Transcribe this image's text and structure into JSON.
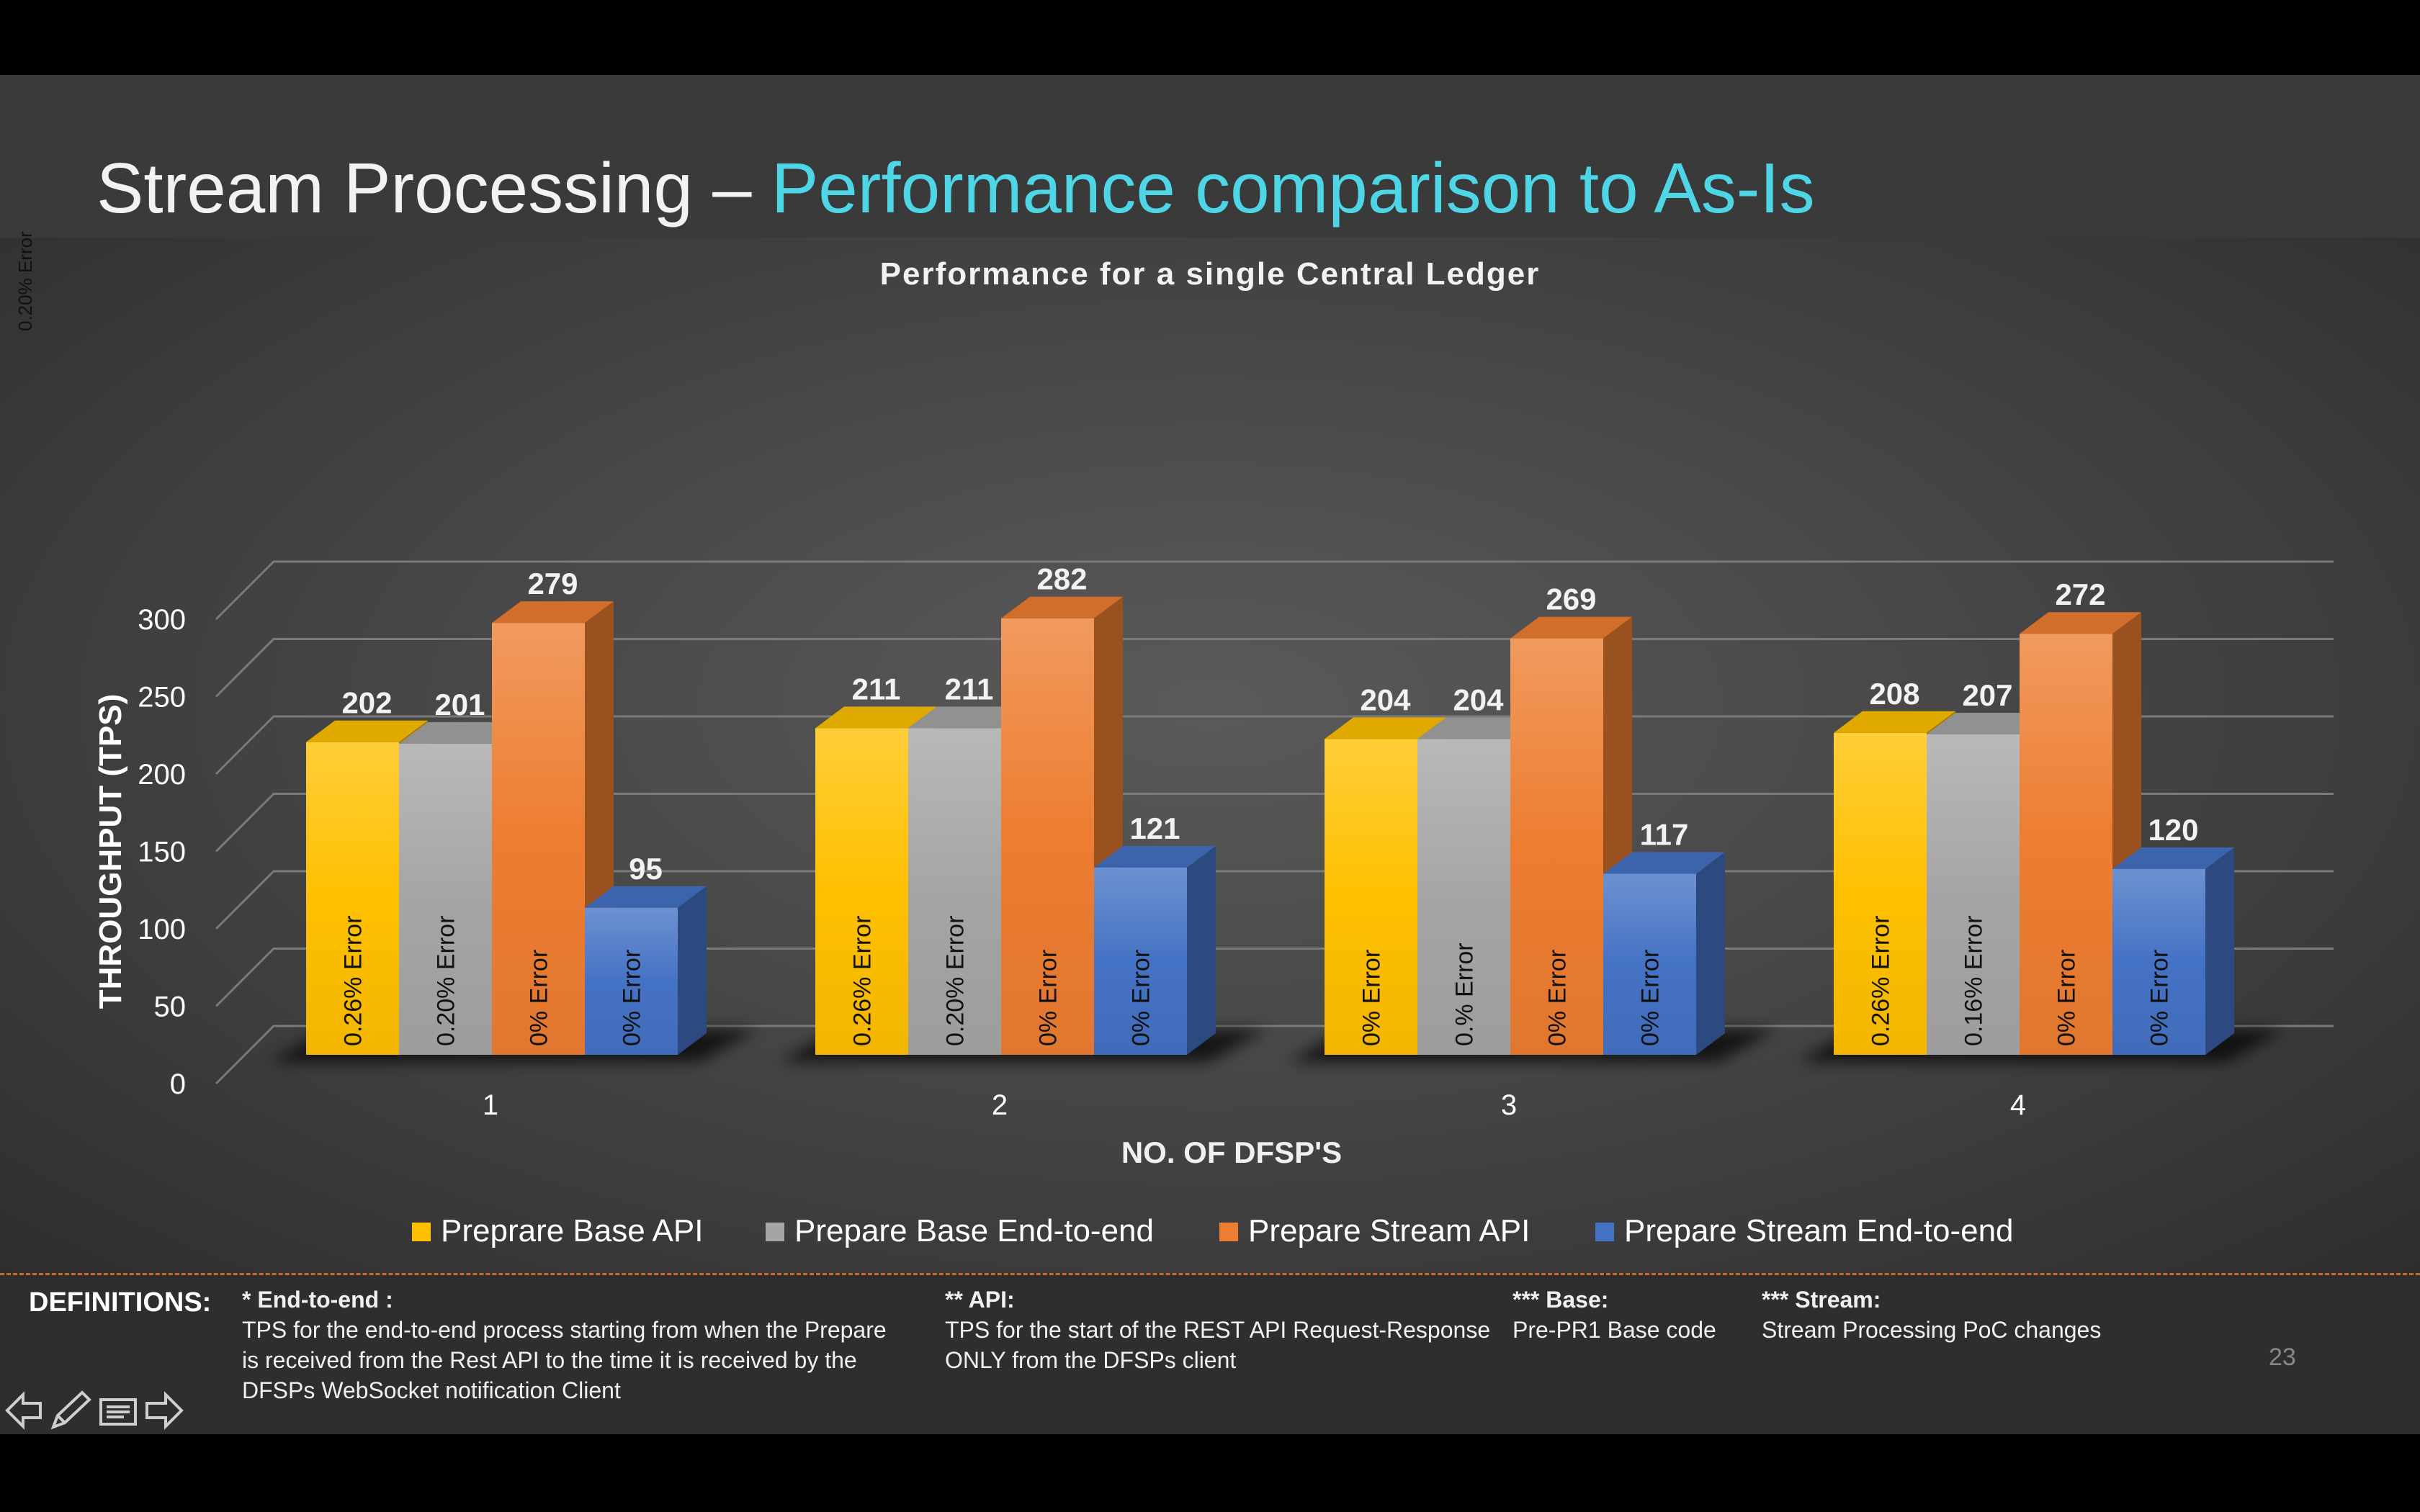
{
  "slide": {
    "title_main": "Stream Processing – ",
    "title_accent": "Performance comparison to As-Is",
    "side_note": "0.20% Error",
    "page_number": "23"
  },
  "definitions": {
    "heading": "DEFINITIONS:",
    "items": [
      {
        "title": "* End-to-end :",
        "text": "TPS for the end-to-end process starting from when the Prepare is received from the Rest API to the time it is received by the DFSPs WebSocket notification Client"
      },
      {
        "title": "** API:",
        "text": "TPS for the start of the REST API Request-Response ONLY from the DFSPs client"
      },
      {
        "title": "*** Base:",
        "text": "Pre-PR1 Base code"
      },
      {
        "title": "*** Stream:",
        "text": "Stream Processing PoC changes"
      }
    ]
  },
  "nav_icons": [
    "back-arrow-icon",
    "pen-icon",
    "menu-icon",
    "forward-arrow-icon"
  ],
  "chart_data": {
    "type": "bar",
    "title": "Performance for a single Central Ledger",
    "xlabel": "NO. OF DFSP'S",
    "ylabel": "THROUGHPUT (TPS)",
    "ylim": [
      0,
      300
    ],
    "yticks": [
      0,
      50,
      100,
      150,
      200,
      250,
      300
    ],
    "categories": [
      "1",
      "2",
      "3",
      "4"
    ],
    "grid": true,
    "legend_position": "bottom",
    "series": [
      {
        "name": "Preprare Base API",
        "color": "#ffc000",
        "values": [
          202,
          211,
          204,
          208
        ],
        "annotations": [
          "0.26% Error",
          "0.26% Error",
          "0% Error",
          "0.26% Error"
        ]
      },
      {
        "name": "Prepare Base End-to-end",
        "color": "#a5a5a5",
        "values": [
          201,
          211,
          204,
          207
        ],
        "annotations": [
          "0.20% Error",
          "0.20% Error",
          "0.% Error",
          "0.16% Error"
        ]
      },
      {
        "name": "Prepare Stream API",
        "color": "#ed7d31",
        "values": [
          279,
          282,
          269,
          272
        ],
        "annotations": [
          "0% Error",
          "0% Error",
          "0% Error",
          "0% Error"
        ]
      },
      {
        "name": "Prepare Stream End-to-end",
        "color": "#4472c4",
        "values": [
          95,
          121,
          117,
          120
        ],
        "annotations": [
          "0% Error",
          "0% Error",
          "0% Error",
          "0% Error"
        ]
      }
    ]
  }
}
